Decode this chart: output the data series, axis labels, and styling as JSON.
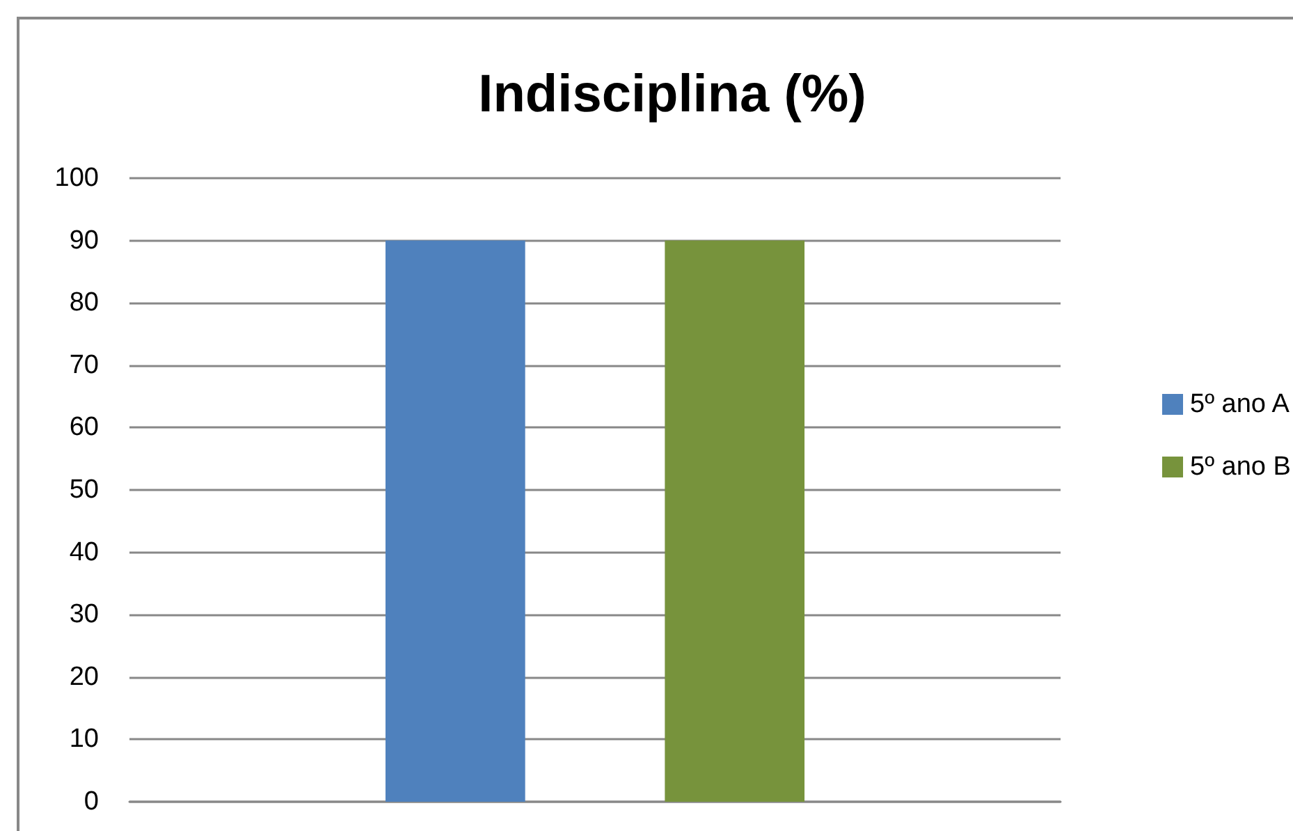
{
  "chart_data": {
    "type": "bar",
    "title": "Indisciplina (%)",
    "categories": [
      null
    ],
    "series": [
      {
        "name": "5º ano A",
        "color": "#4f81bd",
        "values": [
          90
        ]
      },
      {
        "name": "5º ano B",
        "color": "#77933c",
        "values": [
          90
        ]
      }
    ],
    "ylim": [
      0,
      100
    ],
    "yticks": [
      0,
      10,
      20,
      30,
      40,
      50,
      60,
      70,
      80,
      90,
      100
    ],
    "grid": "y",
    "legend": "right"
  }
}
